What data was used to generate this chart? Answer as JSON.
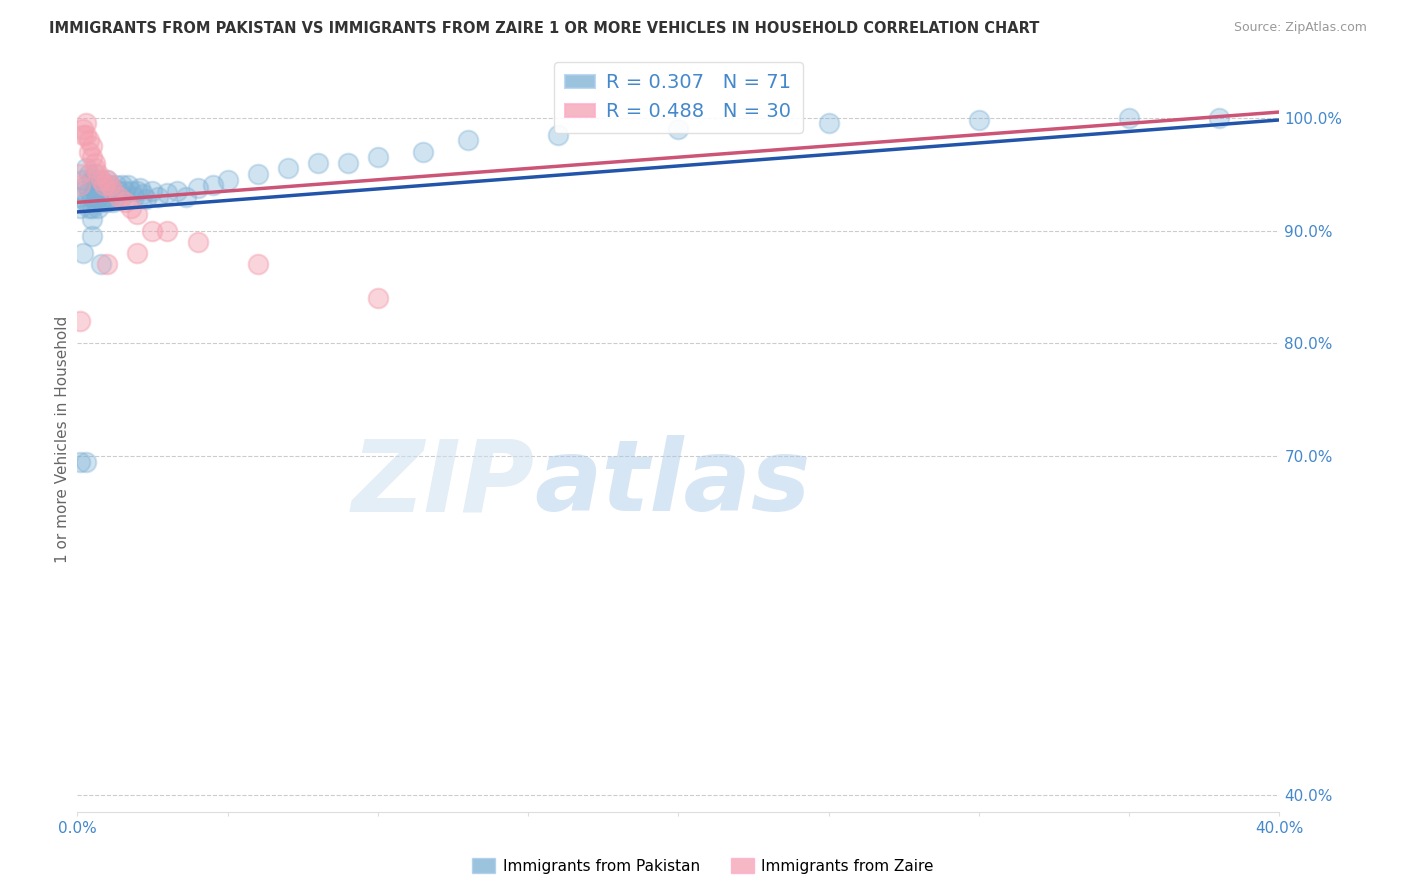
{
  "title": "IMMIGRANTS FROM PAKISTAN VS IMMIGRANTS FROM ZAIRE 1 OR MORE VEHICLES IN HOUSEHOLD CORRELATION CHART",
  "source": "Source: ZipAtlas.com",
  "ylabel": "1 or more Vehicles in Household",
  "legend_blue_label": "Immigrants from Pakistan",
  "legend_pink_label": "Immigrants from Zaire",
  "R_blue": 0.307,
  "N_blue": 71,
  "R_pink": 0.488,
  "N_pink": 30,
  "xmin": 0.0,
  "xmax": 0.4,
  "ymin": 0.385,
  "ymax": 1.045,
  "right_yticks": [
    1.0,
    0.9,
    0.8,
    0.7,
    0.4
  ],
  "right_ytick_labels": [
    "100.0%",
    "90.0%",
    "80.0%",
    "70.0%",
    "40.0%"
  ],
  "blue_color": "#7bafd4",
  "pink_color": "#f4a0b0",
  "blue_line_color": "#2255aa",
  "pink_line_color": "#cc5577",
  "background_color": "#ffffff",
  "grid_color": "#cccccc",
  "title_color": "#333333",
  "axis_tick_color": "#4488cc",
  "pak_x": [
    0.001,
    0.001,
    0.002,
    0.002,
    0.003,
    0.003,
    0.003,
    0.004,
    0.004,
    0.004,
    0.005,
    0.005,
    0.005,
    0.005,
    0.006,
    0.006,
    0.006,
    0.007,
    0.007,
    0.007,
    0.008,
    0.008,
    0.008,
    0.009,
    0.009,
    0.01,
    0.01,
    0.01,
    0.011,
    0.011,
    0.012,
    0.012,
    0.013,
    0.013,
    0.014,
    0.015,
    0.015,
    0.016,
    0.017,
    0.018,
    0.019,
    0.02,
    0.021,
    0.022,
    0.023,
    0.025,
    0.027,
    0.03,
    0.033,
    0.036,
    0.04,
    0.045,
    0.05,
    0.06,
    0.07,
    0.08,
    0.09,
    0.1,
    0.115,
    0.13,
    0.16,
    0.2,
    0.25,
    0.3,
    0.35,
    0.38,
    0.005,
    0.002,
    0.008,
    0.001,
    0.003
  ],
  "pak_y": [
    0.93,
    0.92,
    0.935,
    0.945,
    0.955,
    0.94,
    0.925,
    0.95,
    0.935,
    0.92,
    0.945,
    0.93,
    0.92,
    0.91,
    0.95,
    0.935,
    0.925,
    0.94,
    0.93,
    0.92,
    0.945,
    0.935,
    0.925,
    0.94,
    0.93,
    0.945,
    0.935,
    0.925,
    0.94,
    0.93,
    0.935,
    0.925,
    0.94,
    0.93,
    0.935,
    0.94,
    0.93,
    0.935,
    0.94,
    0.935,
    0.93,
    0.935,
    0.938,
    0.932,
    0.928,
    0.935,
    0.93,
    0.933,
    0.935,
    0.93,
    0.938,
    0.94,
    0.945,
    0.95,
    0.955,
    0.96,
    0.96,
    0.965,
    0.97,
    0.98,
    0.985,
    0.99,
    0.995,
    0.998,
    1.0,
    1.0,
    0.895,
    0.88,
    0.87,
    0.695,
    0.695
  ],
  "zaire_x": [
    0.001,
    0.001,
    0.002,
    0.002,
    0.003,
    0.003,
    0.004,
    0.004,
    0.005,
    0.005,
    0.006,
    0.006,
    0.007,
    0.008,
    0.009,
    0.01,
    0.011,
    0.012,
    0.014,
    0.016,
    0.018,
    0.02,
    0.025,
    0.03,
    0.04,
    0.06,
    0.1,
    0.001,
    0.01,
    0.02
  ],
  "zaire_y": [
    0.95,
    0.94,
    0.99,
    0.985,
    0.995,
    0.985,
    0.98,
    0.97,
    0.975,
    0.965,
    0.96,
    0.955,
    0.95,
    0.945,
    0.94,
    0.945,
    0.94,
    0.935,
    0.93,
    0.925,
    0.92,
    0.915,
    0.9,
    0.9,
    0.89,
    0.87,
    0.84,
    0.82,
    0.87,
    0.88
  ],
  "blue_trend_x0": 0.0,
  "blue_trend_y0": 0.9165,
  "blue_trend_x1": 0.4,
  "blue_trend_y1": 0.998,
  "pink_trend_x0": 0.0,
  "pink_trend_y0": 0.925,
  "pink_trend_x1": 0.4,
  "pink_trend_y1": 1.005
}
